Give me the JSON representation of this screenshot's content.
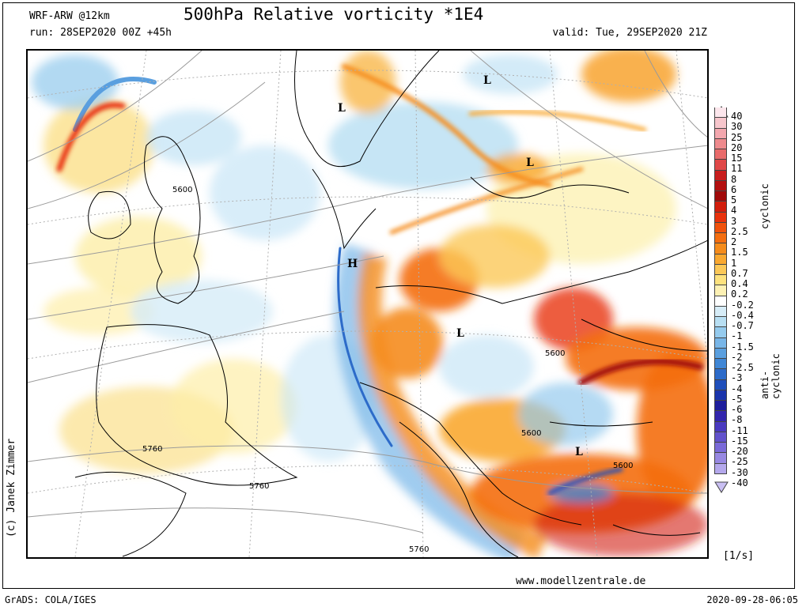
{
  "header": {
    "title": "500hPa Relative vorticity *1E4",
    "model": "WRF-ARW @12km",
    "run": "run: 28SEP2020 00Z +45h",
    "valid": "valid: Tue, 29SEP2020 21Z"
  },
  "footer": {
    "url": "www.modellzentrale.de",
    "grads": "GrADS: COLA/IGES",
    "timestamp": "2020-09-28-06:05",
    "credit": "(c) Janek Zimmer",
    "unit": "[1/s]"
  },
  "legend": {
    "cyclonic_label": "cyclonic",
    "anticyclonic_label": "anti-cyclonic",
    "ticks": [
      "40",
      "30",
      "25",
      "20",
      "15",
      "11",
      "8",
      "6",
      "5",
      "4",
      "3",
      "2.5",
      "2",
      "1.5",
      "1",
      "0.7",
      "0.4",
      "0.2",
      "-0.2",
      "-0.4",
      "-0.7",
      "-1",
      "-1.5",
      "-2",
      "-2.5",
      "-3",
      "-4",
      "-5",
      "-6",
      "-8",
      "-11",
      "-15",
      "-20",
      "-25",
      "-30",
      "-40"
    ],
    "colors": [
      "#fce6ec",
      "#f7c6cc",
      "#f3a7ae",
      "#ee8a8d",
      "#e96b6b",
      "#e04848",
      "#c81e1e",
      "#b31010",
      "#a00a0a",
      "#d21e0c",
      "#e8320c",
      "#f0520c",
      "#f46e10",
      "#f58c1c",
      "#f9a830",
      "#fbc858",
      "#fde27e",
      "#fdf1b4",
      "#ffffff",
      "#d6ecf7",
      "#b8dff3",
      "#95cbee",
      "#78b6e8",
      "#5a9fdf",
      "#3f86d5",
      "#2d6bc9",
      "#1f4fbb",
      "#1a34ab",
      "#1e1e9c",
      "#3326ad",
      "#4a3ac0",
      "#6252cc",
      "#7a6ad8",
      "#9788e2",
      "#b4a8ec"
    ]
  },
  "map": {
    "pressure_labels": [
      "L",
      "L",
      "L",
      "L",
      "L",
      "H"
    ],
    "contours": [
      "5600",
      "5600",
      "5600",
      "5600",
      "5760",
      "5760",
      "5760"
    ]
  }
}
